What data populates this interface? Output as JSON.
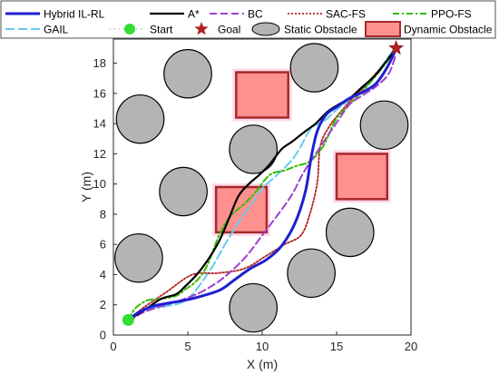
{
  "chart_data": {
    "type": "line",
    "title": "",
    "xlabel": "X (m)",
    "ylabel": "Y (m)",
    "xlim": [
      0,
      20
    ],
    "ylim": [
      0,
      19.6
    ],
    "xticks": [
      "0",
      "5",
      "10",
      "15",
      "20"
    ],
    "yticks": [
      "0",
      "2",
      "4",
      "6",
      "8",
      "10",
      "12",
      "14",
      "16",
      "18"
    ],
    "grid": false,
    "legend_placement": "top",
    "legend": {
      "hybrid": "Hybrid IL-RL",
      "astar": "A*",
      "bc": "BC",
      "sac": "SAC-FS",
      "ppo": "PPO-FS",
      "gail": "GAIL",
      "start": "Start",
      "goal": "Goal",
      "static": "Static Obstacle",
      "dynamic": "Dynamic Obstacle"
    },
    "colors": {
      "hybrid": "#1f1fd0",
      "astar": "#000000",
      "bc": "#a040d0",
      "sac": "#b22222",
      "ppo": "#33bb00",
      "gail": "#66ccee",
      "start": "#33dd33",
      "goal": "#b22222",
      "static_fill": "#b4b4b4",
      "dynamic_fill": "#ff9090",
      "dynamic_edge": "#a52a2a"
    },
    "start": [
      1,
      1
    ],
    "goal": [
      19,
      19
    ],
    "static_obstacles": [
      {
        "x": 5,
        "y": 17.3,
        "r": 1.6
      },
      {
        "x": 13.5,
        "y": 17.7,
        "r": 1.6
      },
      {
        "x": 1.8,
        "y": 14.3,
        "r": 1.6
      },
      {
        "x": 18.2,
        "y": 13.9,
        "r": 1.6
      },
      {
        "x": 9.4,
        "y": 12.3,
        "r": 1.6
      },
      {
        "x": 4.7,
        "y": 9.5,
        "r": 1.6
      },
      {
        "x": 15.9,
        "y": 6.8,
        "r": 1.6
      },
      {
        "x": 1.7,
        "y": 5.1,
        "r": 1.6
      },
      {
        "x": 13.3,
        "y": 4.1,
        "r": 1.6
      },
      {
        "x": 9.4,
        "y": 1.8,
        "r": 1.6
      }
    ],
    "dynamic_obstacles": [
      {
        "x": 8.25,
        "y": 14.4,
        "w": 3.5,
        "h": 3.0
      },
      {
        "x": 6.9,
        "y": 6.8,
        "w": 3.4,
        "h": 3.0
      },
      {
        "x": 15,
        "y": 9.0,
        "w": 3.4,
        "h": 3.0
      }
    ],
    "series": [
      {
        "key": "gail",
        "name": "GAIL",
        "x": [
          1,
          2,
          3.5,
          5,
          6.5,
          7.5,
          8.5,
          9.3,
          10,
          11,
          12,
          12.6,
          13.3,
          14.2,
          15.1,
          16.2,
          17.2,
          18.1,
          18.9
        ],
        "y": [
          1,
          1.7,
          1.9,
          2.4,
          4.3,
          6.0,
          7.6,
          8.7,
          9.7,
          10.6,
          11.6,
          12.5,
          13.7,
          14.2,
          15.0,
          15.8,
          16.7,
          17.9,
          19
        ]
      },
      {
        "key": "sac",
        "name": "SAC-FS",
        "x": [
          1,
          2,
          3.5,
          5.3,
          7,
          8.8,
          10.2,
          11.5,
          12.6,
          13.2,
          13.7,
          13.9,
          14.5,
          15.3,
          16.1,
          17.0,
          17.8,
          18.7,
          19
        ],
        "y": [
          1,
          1.8,
          2.8,
          4.0,
          4.1,
          4.4,
          5.2,
          6.0,
          6.6,
          8.0,
          10.1,
          12.5,
          13.8,
          14.8,
          15.7,
          16.6,
          17.5,
          18.5,
          19
        ]
      },
      {
        "key": "ppo",
        "name": "PPO-FS",
        "x": [
          1,
          1.5,
          2.3,
          3.2,
          4.2,
          4.8,
          5.6,
          6.3,
          7.1,
          7.8,
          8.7,
          9.5,
          10.5,
          11.5,
          12.3,
          13.2,
          14.1,
          14.9,
          15.8,
          16.7,
          17.5,
          18.3,
          19
        ],
        "y": [
          1,
          1.8,
          2.3,
          2.4,
          2.6,
          3.0,
          3.6,
          4.6,
          6.6,
          7.8,
          8.6,
          9.4,
          10.6,
          10.9,
          11.2,
          11.5,
          12.5,
          14.2,
          15.2,
          16.1,
          17.0,
          18.0,
          19
        ]
      },
      {
        "key": "bc",
        "name": "BC",
        "x": [
          1,
          2,
          3.2,
          4.5,
          5.8,
          7,
          8,
          9,
          10,
          11,
          12,
          12.8,
          13.6,
          14.4,
          15.1,
          15.9,
          16.8,
          17.7,
          18.5,
          19
        ],
        "y": [
          0.9,
          1.5,
          1.9,
          2.3,
          2.8,
          3.5,
          4.3,
          5.3,
          6.6,
          7.9,
          9.3,
          10.8,
          12.0,
          13.2,
          14.2,
          15.3,
          15.9,
          16.5,
          17.3,
          18.6
        ]
      },
      {
        "key": "astar",
        "name": "A*",
        "x": [
          1,
          1.5,
          2.3,
          3.2,
          4.2,
          4.8,
          5.6,
          6.3,
          7.1,
          7.8,
          8.4,
          9.1,
          9.8,
          10.5,
          11.3,
          12.0,
          12.9,
          13.6,
          14.4,
          15.2,
          15.9,
          16.7,
          17.6,
          18.4,
          19
        ],
        "y": [
          1,
          1.3,
          1.8,
          2.4,
          2.7,
          3.2,
          4.0,
          4.9,
          6.2,
          7.8,
          9.2,
          10.0,
          10.6,
          11.3,
          12.3,
          12.8,
          13.5,
          14.0,
          14.8,
          15.3,
          15.7,
          16.4,
          17.2,
          18.2,
          19
        ]
      },
      {
        "key": "hybrid",
        "name": "Hybrid IL-RL",
        "x": [
          1,
          1.7,
          2.6,
          3.6,
          4.8,
          6,
          7.2,
          8.2,
          9.2,
          10.3,
          11.3,
          12.2,
          12.9,
          13.3,
          13.7,
          14.3,
          15.0,
          15.9,
          16.8,
          17.6,
          18.2,
          18.7,
          19
        ],
        "y": [
          1,
          1.5,
          1.9,
          2.1,
          2.3,
          2.6,
          3.0,
          3.7,
          4.4,
          5.0,
          5.9,
          7.4,
          9.5,
          11.8,
          13.5,
          14.6,
          15.1,
          15.7,
          16.1,
          16.6,
          17.4,
          18.3,
          19
        ]
      }
    ]
  }
}
